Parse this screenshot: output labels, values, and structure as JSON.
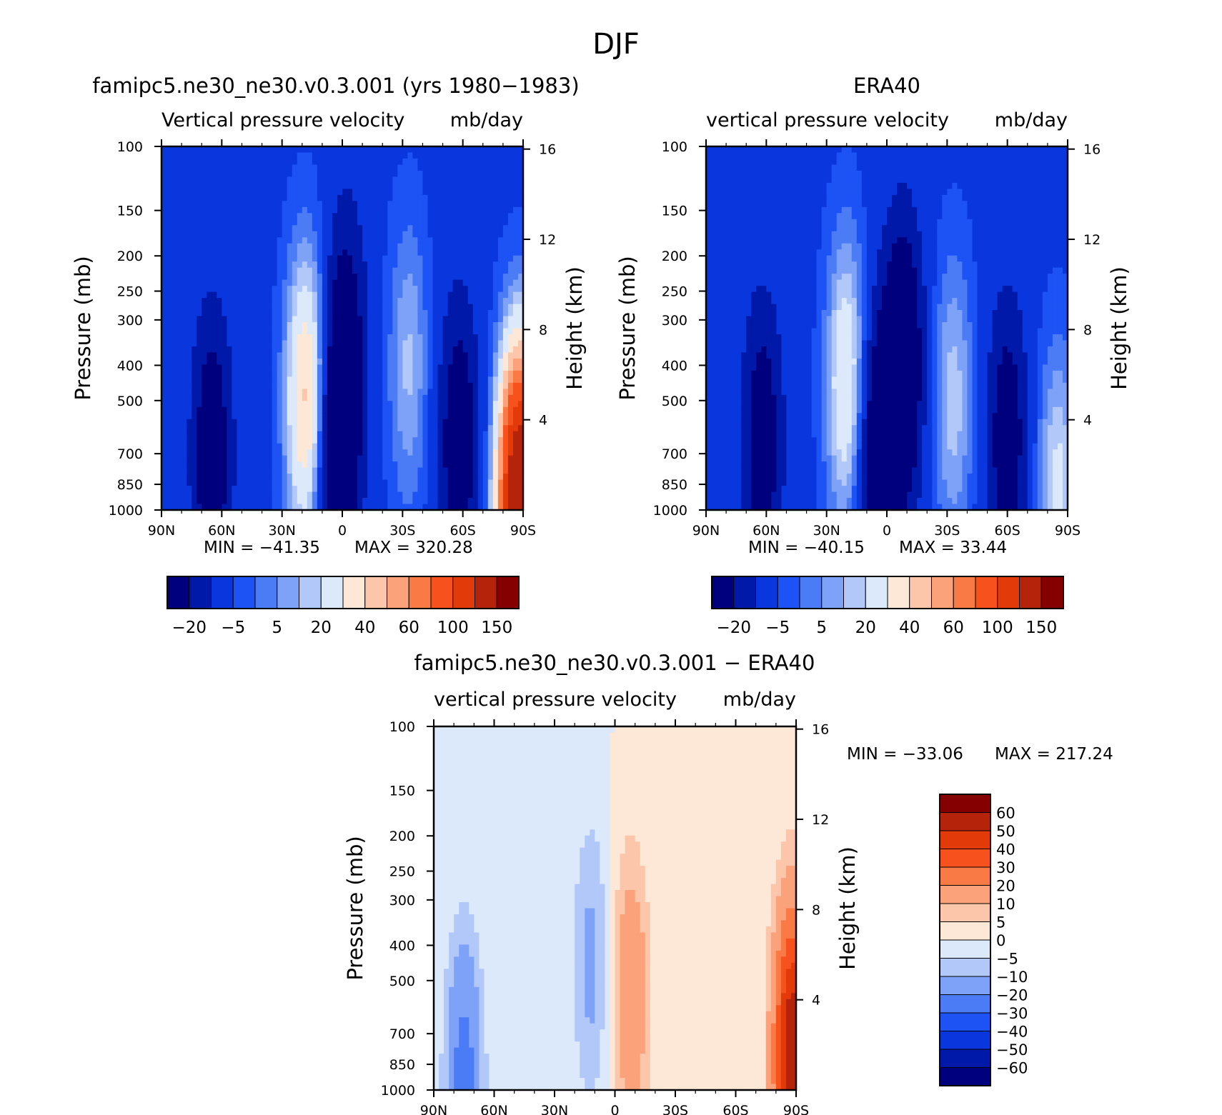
{
  "page": {
    "title": "DJF"
  },
  "chart_data": [
    {
      "type": "heatmap",
      "title": "famipc5.ne30_ne30.v0.3.001 (yrs 1980−1983)",
      "subtitle_left": "Vertical pressure velocity",
      "subtitle_right": "mb/day",
      "ylabel": "Pressure (mb)",
      "ylabel_right": "Height (km)",
      "x_ticks": [
        "90N",
        "60N",
        "30N",
        "0",
        "30S",
        "60S",
        "90S"
      ],
      "x_values": [
        90,
        60,
        30,
        0,
        -30,
        -60,
        -90
      ],
      "y_ticks": [
        100,
        150,
        200,
        250,
        300,
        400,
        500,
        700,
        850,
        1000
      ],
      "y_right_ticks": [
        16,
        12,
        8,
        4
      ],
      "ylim": [
        1000,
        100
      ],
      "y_scale": "log",
      "min_label": "MIN = −41.35",
      "max_label": "MAX = 320.28",
      "colorbar": {
        "orientation": "horizontal",
        "labels": [
          "−20",
          "−5",
          "5",
          "20",
          "40",
          "60",
          "100",
          "150"
        ],
        "colors": [
          "#00007f",
          "#0019a8",
          "#0a37dd",
          "#1d52f5",
          "#4b7cf6",
          "#7ea2f7",
          "#b1c8f9",
          "#dce9fb",
          "#fde8d8",
          "#fcc6ab",
          "#fba27a",
          "#fa7a45",
          "#f7521d",
          "#e33a0a",
          "#b5230a",
          "#850000"
        ]
      },
      "features": [
        {
          "lat": 65,
          "p": 700,
          "v": -30
        },
        {
          "lat": 18,
          "p": 500,
          "v": 45
        },
        {
          "lat": 3,
          "p": 800,
          "v": -38
        },
        {
          "lat": -2,
          "p": 350,
          "v": -25
        },
        {
          "lat": -33,
          "p": 400,
          "v": 18
        },
        {
          "lat": -58,
          "p": 650,
          "v": -30
        },
        {
          "lat": -88,
          "p": 950,
          "v": 150
        }
      ]
    },
    {
      "type": "heatmap",
      "title": "ERA40",
      "subtitle_left": "vertical pressure velocity",
      "subtitle_right": "mb/day",
      "ylabel": "Pressure (mb)",
      "ylabel_right": "Height (km)",
      "x_ticks": [
        "90N",
        "60N",
        "30N",
        "0",
        "30S",
        "60S",
        "90S"
      ],
      "x_values": [
        90,
        60,
        30,
        0,
        -30,
        -60,
        -90
      ],
      "y_ticks": [
        100,
        150,
        200,
        250,
        300,
        400,
        500,
        700,
        850,
        1000
      ],
      "y_right_ticks": [
        16,
        12,
        8,
        4
      ],
      "ylim": [
        1000,
        100
      ],
      "y_scale": "log",
      "min_label": "MIN = −40.15",
      "max_label": "MAX = 33.44",
      "colorbar": {
        "orientation": "horizontal",
        "labels": [
          "−20",
          "−5",
          "5",
          "20",
          "40",
          "60",
          "100",
          "150"
        ],
        "colors": [
          "#00007f",
          "#0019a8",
          "#0a37dd",
          "#1d52f5",
          "#4b7cf6",
          "#7ea2f7",
          "#b1c8f9",
          "#dce9fb",
          "#fde8d8",
          "#fcc6ab",
          "#fba27a",
          "#fa7a45",
          "#f7521d",
          "#e33a0a",
          "#b5230a",
          "#850000"
        ]
      },
      "features": [
        {
          "lat": 62,
          "p": 650,
          "v": -28
        },
        {
          "lat": 20,
          "p": 450,
          "v": 33
        },
        {
          "lat": 5,
          "p": 750,
          "v": -35
        },
        {
          "lat": -8,
          "p": 400,
          "v": -40
        },
        {
          "lat": -33,
          "p": 500,
          "v": 20
        },
        {
          "lat": -60,
          "p": 650,
          "v": -28
        },
        {
          "lat": -85,
          "p": 900,
          "v": 25
        }
      ]
    },
    {
      "type": "heatmap",
      "title": "famipc5.ne30_ne30.v0.3.001 − ERA40",
      "subtitle_left": "vertical pressure velocity",
      "subtitle_right": "mb/day",
      "ylabel": "Pressure (mb)",
      "ylabel_right": "Height (km)",
      "x_ticks": [
        "90N",
        "60N",
        "30N",
        "0",
        "30S",
        "60S",
        "90S"
      ],
      "x_values": [
        90,
        60,
        30,
        0,
        -30,
        -60,
        -90
      ],
      "y_ticks": [
        100,
        150,
        200,
        250,
        300,
        400,
        500,
        700,
        850,
        1000
      ],
      "y_right_ticks": [
        16,
        12,
        8,
        4
      ],
      "ylim": [
        1000,
        100
      ],
      "y_scale": "log",
      "min_label": "MIN = −33.06",
      "max_label": "MAX = 217.24",
      "colorbar": {
        "orientation": "vertical",
        "labels": [
          "60",
          "50",
          "40",
          "30",
          "20",
          "10",
          "5",
          "0",
          "−5",
          "−10",
          "−20",
          "−30",
          "−40",
          "−50",
          "−60"
        ],
        "colors": [
          "#850000",
          "#b5230a",
          "#e33a0a",
          "#f7521d",
          "#fa7a45",
          "#fba27a",
          "#fcc6ab",
          "#fde8d8",
          "#dce9fb",
          "#b1c8f9",
          "#7ea2f7",
          "#4b7cf6",
          "#1d52f5",
          "#0a37dd",
          "#0019a8",
          "#00007f"
        ]
      },
      "features": [
        {
          "lat": 75,
          "p": 950,
          "v": -25
        },
        {
          "lat": -8,
          "p": 550,
          "v": 18
        },
        {
          "lat": 12,
          "p": 450,
          "v": -12
        },
        {
          "lat": -55,
          "p": 400,
          "v": 5
        },
        {
          "lat": -88,
          "p": 800,
          "v": 60
        }
      ]
    }
  ]
}
